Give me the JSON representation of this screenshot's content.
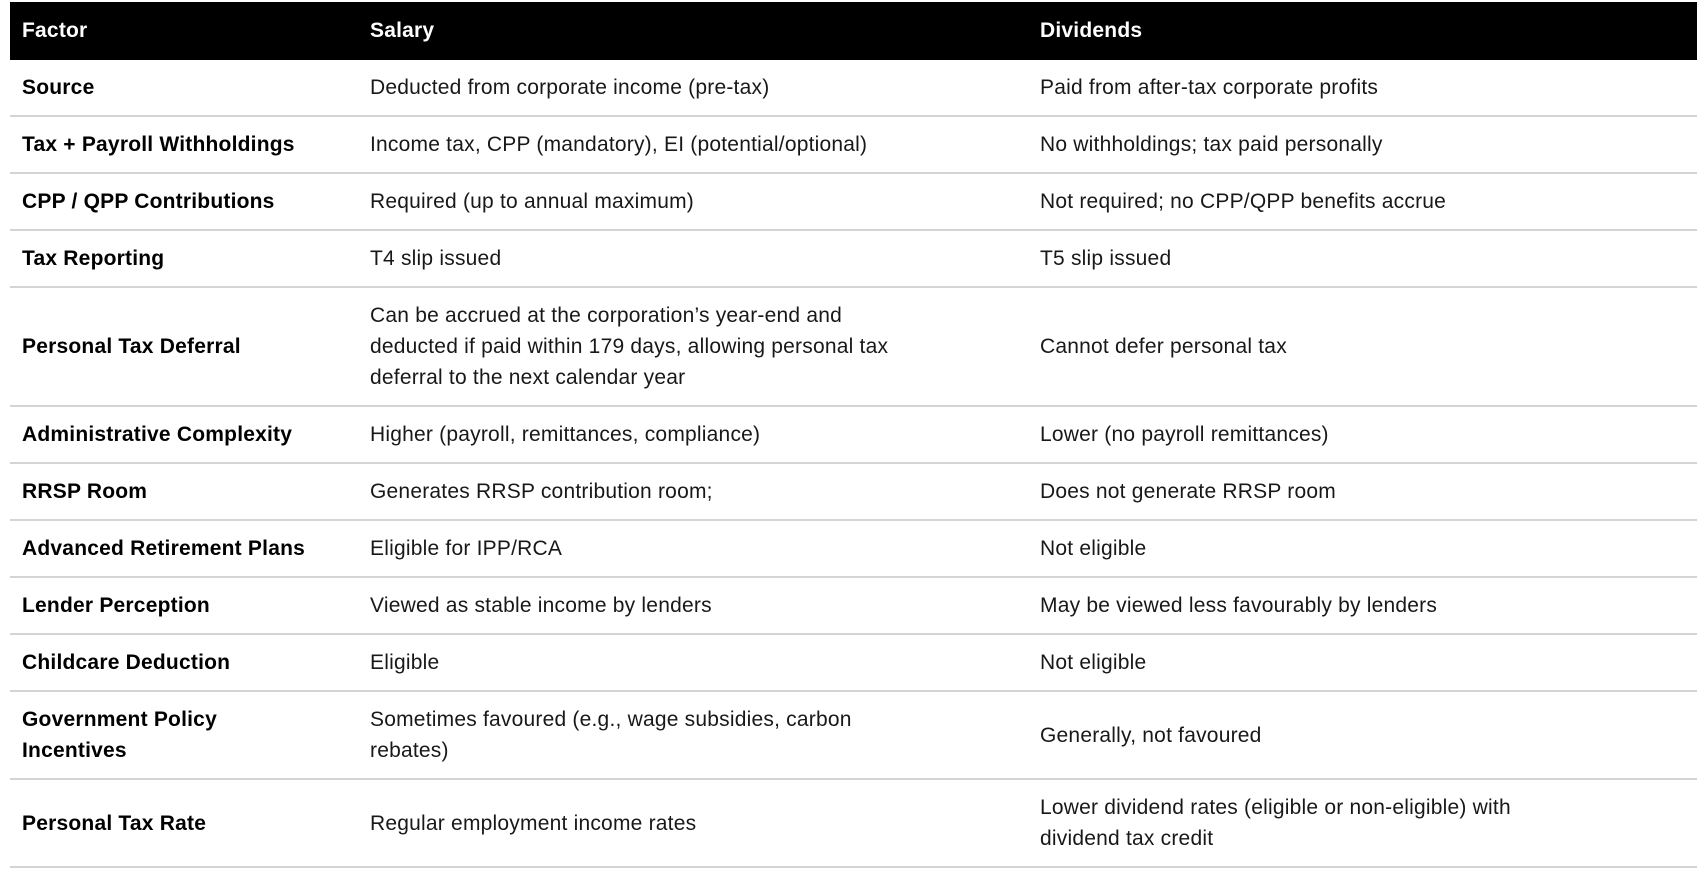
{
  "table": {
    "columns": {
      "factor": "Factor",
      "salary": "Salary",
      "dividends": "Dividends"
    },
    "rows": [
      {
        "factor": "Source",
        "salary": "Deducted from corporate income (pre-tax)",
        "dividends": "Paid from after-tax corporate profits"
      },
      {
        "factor": "Tax + Payroll Withholdings",
        "salary": "Income tax, CPP (mandatory), EI (potential/optional)",
        "dividends": "No withholdings; tax paid personally"
      },
      {
        "factor": "CPP / QPP Contributions",
        "salary": "Required (up to annual maximum)",
        "dividends": "Not required; no CPP/QPP benefits accrue"
      },
      {
        "factor": "Tax Reporting",
        "salary": "T4 slip issued",
        "dividends": "T5 slip issued"
      },
      {
        "factor": "Personal Tax Deferral",
        "salary": "Can be accrued at the corporation’s year-end and\ndeducted if paid within 179 days, allowing personal tax\ndeferral to the next calendar year",
        "dividends": "Cannot defer personal tax"
      },
      {
        "factor": "Administrative Complexity",
        "salary": "Higher (payroll, remittances, compliance)",
        "dividends": "Lower (no payroll remittances)"
      },
      {
        "factor": "RRSP Room",
        "salary": "Generates RRSP contribution room;",
        "dividends": "Does not generate RRSP room"
      },
      {
        "factor": "Advanced Retirement Plans",
        "salary": "Eligible for IPP/RCA",
        "dividends": "Not eligible"
      },
      {
        "factor": "Lender Perception",
        "salary": "Viewed as stable income by lenders",
        "dividends": "May be viewed less favourably by lenders"
      },
      {
        "factor": "Childcare Deduction",
        "salary": "Eligible",
        "dividends": "Not eligible"
      },
      {
        "factor": "Government Policy\nIncentives",
        "salary": "Sometimes favoured (e.g., wage subsidies, carbon\nrebates)",
        "dividends": "Generally, not favoured"
      },
      {
        "factor": "Personal Tax Rate",
        "salary": "Regular employment income rates",
        "dividends": "Lower dividend rates (eligible or non-eligible) with\ndividend tax credit"
      }
    ]
  },
  "colors": {
    "header_bg": "#000000",
    "header_text": "#ffffff",
    "factor_text": "#000000",
    "value_text": "#181818",
    "divider": "#d4d4d4",
    "background": "#ffffff"
  }
}
